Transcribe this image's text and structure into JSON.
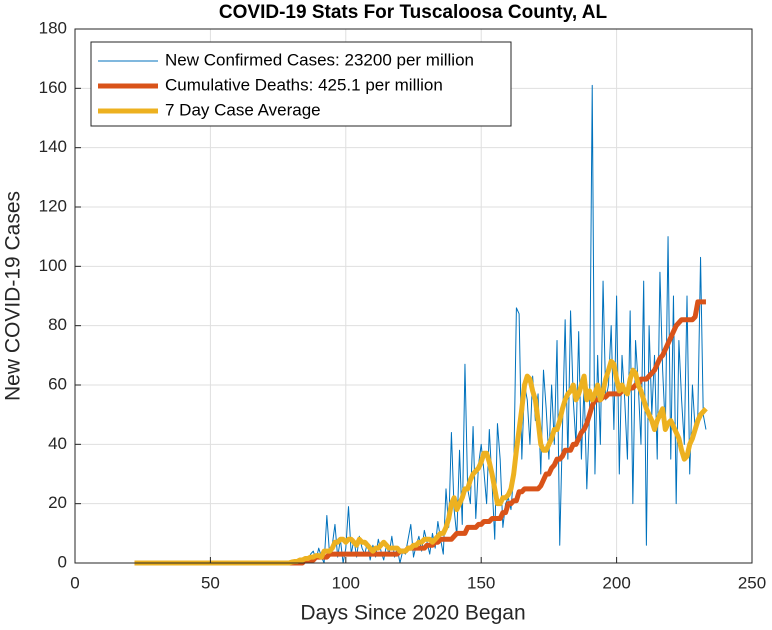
{
  "chart_data": {
    "type": "line",
    "title": "COVID-19 Stats For Tuscaloosa County, AL",
    "x_label": "Days Since 2020 Began",
    "y_label": "New COVID-19 Cases",
    "xlim": [
      0,
      250
    ],
    "xticks": [
      0,
      50,
      100,
      150,
      200,
      250
    ],
    "ylim": [
      0,
      180
    ],
    "yticks": [
      0,
      20,
      40,
      60,
      80,
      100,
      120,
      140,
      160,
      180
    ],
    "grid": true,
    "legend": "upper-left",
    "x": [
      22,
      23,
      24,
      25,
      26,
      27,
      28,
      29,
      30,
      31,
      32,
      33,
      34,
      35,
      36,
      37,
      38,
      39,
      40,
      41,
      42,
      43,
      44,
      45,
      46,
      47,
      48,
      49,
      50,
      51,
      52,
      53,
      54,
      55,
      56,
      57,
      58,
      59,
      60,
      61,
      62,
      63,
      64,
      65,
      66,
      67,
      68,
      69,
      70,
      71,
      72,
      73,
      74,
      75,
      76,
      77,
      78,
      79,
      80,
      81,
      82,
      83,
      84,
      85,
      86,
      87,
      88,
      89,
      90,
      91,
      92,
      93,
      94,
      95,
      96,
      97,
      98,
      99,
      100,
      101,
      102,
      103,
      104,
      105,
      106,
      107,
      108,
      109,
      110,
      111,
      112,
      113,
      114,
      115,
      116,
      117,
      118,
      119,
      120,
      121,
      122,
      123,
      124,
      125,
      126,
      127,
      128,
      129,
      130,
      131,
      132,
      133,
      134,
      135,
      136,
      137,
      138,
      139,
      140,
      141,
      142,
      143,
      144,
      145,
      146,
      147,
      148,
      149,
      150,
      151,
      152,
      153,
      154,
      155,
      156,
      157,
      158,
      159,
      160,
      161,
      162,
      163,
      164,
      165,
      166,
      167,
      168,
      169,
      170,
      171,
      172,
      173,
      174,
      175,
      176,
      177,
      178,
      179,
      180,
      181,
      182,
      183,
      184,
      185,
      186,
      187,
      188,
      189,
      190,
      191,
      192,
      193,
      194,
      195,
      196,
      197,
      198,
      199,
      200,
      201,
      202,
      203,
      204,
      205,
      206,
      207,
      208,
      209,
      210,
      211,
      212,
      213,
      214,
      215,
      216,
      217,
      218,
      219,
      220,
      221,
      222,
      223,
      224,
      225,
      226,
      227,
      228,
      229,
      230,
      231,
      232,
      233
    ],
    "series": [
      {
        "name": "New Confirmed Cases: 23200 per million",
        "color": "#0072BD",
        "width": 1,
        "values": [
          0,
          0,
          0,
          0,
          0,
          0,
          0,
          0,
          0,
          0,
          0,
          0,
          0,
          0,
          0,
          0,
          0,
          0,
          0,
          0,
          0,
          0,
          0,
          0,
          0,
          0,
          0,
          0,
          0,
          0,
          0,
          0,
          0,
          0,
          0,
          0,
          0,
          0,
          0,
          0,
          0,
          0,
          0,
          0,
          0,
          0,
          0,
          0,
          0,
          0,
          0,
          0,
          0,
          0,
          0,
          0,
          0,
          0,
          0,
          1,
          0,
          1,
          0,
          2,
          0,
          3,
          4,
          1,
          5,
          2,
          0,
          16,
          3,
          6,
          13,
          2,
          8,
          0,
          5,
          19,
          3,
          8,
          2,
          9,
          5,
          3,
          7,
          1,
          6,
          2,
          8,
          4,
          1,
          6,
          3,
          9,
          2,
          5,
          0,
          4,
          3,
          8,
          13,
          2,
          6,
          9,
          4,
          11,
          7,
          3,
          10,
          5,
          14,
          8,
          3,
          25,
          12,
          44,
          18,
          9,
          38,
          13,
          67,
          25,
          20,
          46,
          15,
          33,
          40,
          31,
          20,
          45,
          27,
          8,
          47,
          35,
          12,
          20,
          22,
          18,
          30,
          86,
          84,
          35,
          60,
          55,
          40,
          63,
          48,
          57,
          30,
          65,
          52,
          35,
          60,
          40,
          75,
          6,
          45,
          82,
          35,
          85,
          55,
          40,
          78,
          35,
          60,
          25,
          50,
          161,
          30,
          70,
          40,
          95,
          55,
          60,
          80,
          45,
          90,
          30,
          70,
          55,
          35,
          85,
          20,
          75,
          60,
          40,
          95,
          6,
          80,
          50,
          70,
          35,
          98,
          65,
          45,
          110,
          35,
          90,
          20,
          75,
          55,
          40,
          90,
          30,
          60,
          45,
          50,
          103,
          50,
          45
        ]
      },
      {
        "name": "Cumulative Deaths: 425.1 per million",
        "color": "#D95319",
        "width": 5,
        "values": [
          0,
          0,
          0,
          0,
          0,
          0,
          0,
          0,
          0,
          0,
          0,
          0,
          0,
          0,
          0,
          0,
          0,
          0,
          0,
          0,
          0,
          0,
          0,
          0,
          0,
          0,
          0,
          0,
          0,
          0,
          0,
          0,
          0,
          0,
          0,
          0,
          0,
          0,
          0,
          0,
          0,
          0,
          0,
          0,
          0,
          0,
          0,
          0,
          0,
          0,
          0,
          0,
          0,
          0,
          0,
          0,
          0,
          0,
          0,
          0,
          0,
          0,
          0,
          1,
          1,
          1,
          1,
          2,
          2,
          2,
          2,
          2,
          3,
          3,
          3,
          3,
          3,
          3,
          3,
          3,
          3,
          3,
          3,
          3,
          3,
          3,
          3,
          3,
          3,
          3,
          3,
          3,
          3,
          3,
          3,
          3,
          3,
          3,
          4,
          4,
          4,
          5,
          5,
          5,
          5,
          5,
          5,
          5,
          6,
          6,
          6,
          7,
          7,
          8,
          8,
          8,
          8,
          8,
          9,
          10,
          10,
          10,
          10,
          12,
          12,
          12,
          12,
          13,
          13,
          14,
          14,
          14,
          15,
          15,
          15,
          15,
          17,
          17,
          20,
          20,
          21,
          21,
          24,
          24,
          25,
          25,
          25,
          25,
          25,
          25,
          26,
          28,
          30,
          30,
          32,
          33,
          35,
          35,
          36,
          38,
          38,
          38,
          40,
          40,
          42,
          44,
          45,
          47,
          50,
          53,
          55,
          55,
          55,
          56,
          56,
          57,
          57,
          57,
          57,
          57,
          58,
          58,
          58,
          59,
          59,
          60,
          60,
          62,
          62,
          62,
          63,
          64,
          65,
          67,
          69,
          70,
          72,
          74,
          76,
          78,
          80,
          81,
          82,
          82,
          82,
          82,
          82,
          83,
          88,
          88,
          88,
          88
        ]
      },
      {
        "name": "7 Day Case Average",
        "color": "#EDB120",
        "width": 5,
        "values": [
          0,
          0,
          0,
          0,
          0,
          0,
          0,
          0,
          0,
          0,
          0,
          0,
          0,
          0,
          0,
          0,
          0,
          0,
          0,
          0,
          0,
          0,
          0,
          0,
          0,
          0,
          0,
          0,
          0,
          0,
          0,
          0,
          0,
          0,
          0,
          0,
          0,
          0,
          0,
          0,
          0,
          0,
          0,
          0,
          0,
          0,
          0,
          0,
          0,
          0,
          0,
          0,
          0,
          0,
          0,
          0,
          0,
          0,
          0.3,
          0.5,
          0.5,
          1,
          1,
          1.5,
          1.5,
          2,
          2,
          2.5,
          2.5,
          2,
          4,
          4,
          4,
          5,
          7,
          7,
          8,
          8,
          7,
          8,
          8,
          7,
          6,
          8,
          7,
          7,
          6,
          5,
          4,
          5,
          5,
          6,
          7,
          6,
          5,
          5,
          5,
          5,
          4,
          4,
          4,
          5,
          5,
          6,
          6,
          7,
          7,
          8,
          8,
          8,
          7,
          8,
          9,
          10,
          10,
          12,
          15,
          20,
          22,
          18,
          20,
          22,
          25,
          25,
          28,
          30,
          31,
          32,
          34,
          37,
          37,
          34,
          30,
          25,
          20,
          20,
          22,
          22,
          23,
          25,
          30,
          38,
          45,
          52,
          60,
          63,
          62,
          58,
          55,
          48,
          40,
          38,
          38,
          40,
          42,
          45,
          45,
          48,
          52,
          55,
          57,
          58,
          60,
          55,
          57,
          60,
          63,
          55,
          58,
          55,
          57,
          60,
          55,
          58,
          62,
          65,
          68,
          67,
          62,
          58,
          60,
          58,
          57,
          62,
          65,
          64,
          60,
          58,
          55,
          52,
          50,
          48,
          45,
          48,
          50,
          52,
          45,
          47,
          48,
          46,
          44,
          42,
          38,
          35,
          36,
          40,
          42,
          45,
          48,
          50,
          51,
          52
        ]
      }
    ]
  }
}
